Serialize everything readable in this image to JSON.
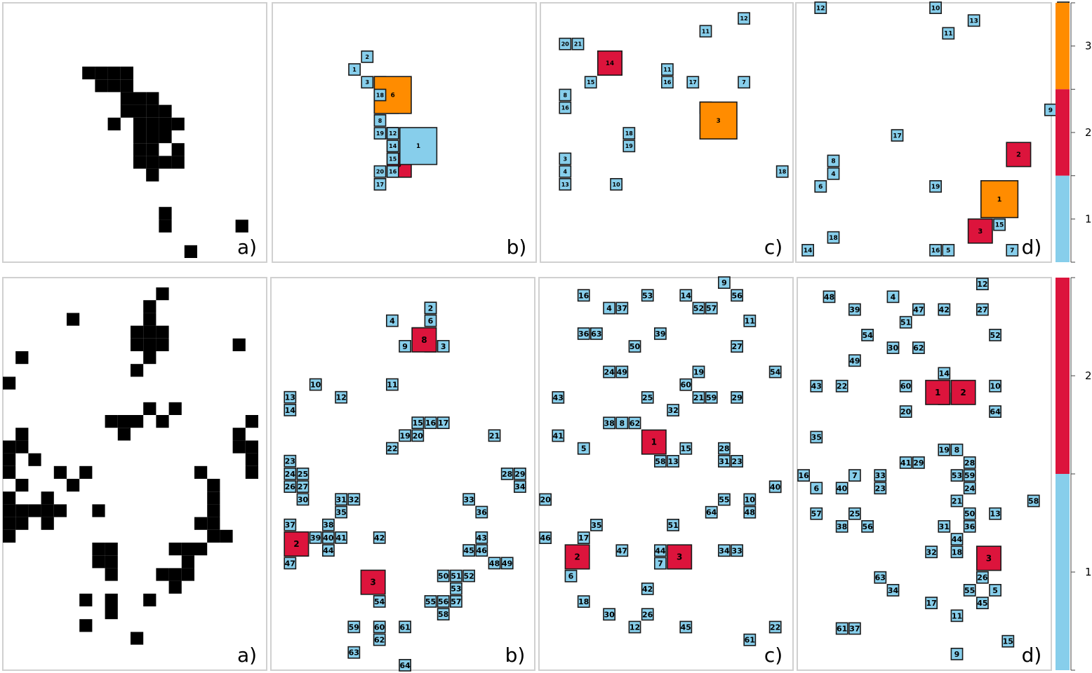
{
  "colors": {
    "level_1": "#87ceeb",
    "level_2": "#dc143c",
    "level_3": "#ff8c00",
    "pixel": "#000000",
    "panel_border": "#d0d0d0"
  },
  "rows": [
    {
      "label_a": "a)",
      "label_b": "b)",
      "label_c": "c)",
      "label_d": "d)",
      "grid_size": 20,
      "pixels": [
        [
          6,
          5
        ],
        [
          7,
          5
        ],
        [
          8,
          5
        ],
        [
          9,
          5
        ],
        [
          7,
          6
        ],
        [
          8,
          6
        ],
        [
          9,
          6
        ],
        [
          9,
          7
        ],
        [
          10,
          7
        ],
        [
          11,
          7
        ],
        [
          9,
          8
        ],
        [
          10,
          8
        ],
        [
          11,
          8
        ],
        [
          12,
          8
        ],
        [
          8,
          9
        ],
        [
          10,
          9
        ],
        [
          11,
          9
        ],
        [
          12,
          9
        ],
        [
          13,
          9
        ],
        [
          10,
          10
        ],
        [
          11,
          10
        ],
        [
          12,
          10
        ],
        [
          10,
          11
        ],
        [
          11,
          11
        ],
        [
          13,
          11
        ],
        [
          10,
          12
        ],
        [
          11,
          12
        ],
        [
          12,
          12
        ],
        [
          13,
          12
        ],
        [
          11,
          13
        ],
        [
          12,
          16
        ],
        [
          12,
          17
        ],
        [
          18,
          17
        ],
        [
          14,
          19
        ]
      ],
      "b_boxes": [
        [
          5,
          0,
          5,
          1
        ],
        [
          6,
          0,
          4,
          2
        ],
        [
          6,
          0,
          6,
          3
        ],
        [
          7,
          0,
          6,
          5
        ],
        [
          7,
          0,
          7,
          7
        ],
        [
          7,
          0,
          9,
          8
        ],
        [
          8,
          0,
          10,
          10
        ],
        [
          8,
          0,
          10,
          11
        ],
        [
          8,
          0,
          10,
          12
        ],
        [
          8,
          0,
          11,
          13
        ],
        [
          7,
          1,
          7,
          4
        ],
        [
          8,
          1,
          12,
          9
        ],
        [
          7,
          2,
          6,
          6
        ],
        [
          9,
          3,
          10,
          1
        ],
        [
          8,
          0,
          11,
          14
        ],
        [
          8,
          0,
          12,
          15
        ],
        [
          8,
          0,
          13,
          16
        ],
        [
          7,
          0,
          7,
          18
        ],
        [
          7,
          0,
          13,
          20
        ],
        [
          7,
          0,
          14,
          17
        ],
        [
          7,
          0,
          10,
          19
        ]
      ],
      "c_boxes": [
        [
          12,
          0,
          8,
          2
        ],
        [
          12,
          0,
          2,
          11
        ],
        [
          1,
          0,
          12,
          3
        ],
        [
          1,
          0,
          13,
          4
        ],
        [
          1,
          0,
          7,
          8
        ],
        [
          4,
          1,
          4,
          14
        ],
        [
          3,
          0,
          6,
          15
        ],
        [
          1,
          0,
          8,
          16
        ],
        [
          6,
          0,
          10,
          18
        ],
        [
          6,
          0,
          11,
          19
        ],
        [
          1,
          0,
          3,
          20
        ],
        [
          2,
          0,
          3,
          21
        ],
        [
          15,
          0,
          1,
          12
        ],
        [
          1,
          0,
          14,
          13
        ],
        [
          5,
          0,
          14,
          10
        ],
        [
          9,
          0,
          5,
          11
        ],
        [
          9,
          0,
          6,
          16
        ],
        [
          11,
          0,
          6,
          17
        ],
        [
          15,
          0,
          6,
          7
        ],
        [
          18,
          0,
          13,
          18
        ],
        [
          12,
          2,
          8,
          3
        ]
      ],
      "d_boxes": [
        [
          1,
          0,
          0,
          12
        ],
        [
          10,
          0,
          0,
          10
        ],
        [
          13,
          0,
          1,
          13
        ],
        [
          20,
          0,
          0,
          20
        ],
        [
          11,
          0,
          2,
          11
        ],
        [
          19,
          0,
          8,
          9
        ],
        [
          7,
          0,
          10,
          17
        ],
        [
          2,
          0,
          12,
          8
        ],
        [
          2,
          0,
          13,
          4
        ],
        [
          1,
          0,
          14,
          6
        ],
        [
          16,
          1,
          11,
          2
        ],
        [
          10,
          0,
          14,
          19
        ],
        [
          14,
          2,
          14,
          1
        ],
        [
          15,
          0,
          17,
          15
        ],
        [
          13,
          1,
          17,
          3
        ],
        [
          2,
          0,
          18,
          18
        ],
        [
          0,
          0,
          19,
          14
        ],
        [
          10,
          0,
          19,
          16
        ],
        [
          11,
          0,
          19,
          5
        ],
        [
          16,
          0,
          19,
          7
        ]
      ],
      "legend": {
        "ticks": [
          "1",
          "2",
          "3"
        ],
        "levels": 3
      }
    },
    {
      "label_a": "a)",
      "label_b": "b)",
      "label_c": "c)",
      "label_d": "d)",
      "grid_size": 30,
      "legend": {
        "ticks": [
          "1",
          "2"
        ],
        "levels": 2
      }
    }
  ],
  "row2_pixels": [
    [
      12,
      0
    ],
    [
      11,
      1
    ],
    [
      5,
      2
    ],
    [
      11,
      2
    ],
    [
      10,
      3
    ],
    [
      11,
      3
    ],
    [
      12,
      3
    ],
    [
      10,
      4
    ],
    [
      11,
      4
    ],
    [
      12,
      4
    ],
    [
      18,
      4
    ],
    [
      1,
      5
    ],
    [
      11,
      5
    ],
    [
      10,
      6
    ],
    [
      0,
      7
    ],
    [
      11,
      9
    ],
    [
      13,
      9
    ],
    [
      8,
      10
    ],
    [
      9,
      10
    ],
    [
      10,
      10
    ],
    [
      12,
      10
    ],
    [
      19,
      10
    ],
    [
      9,
      11
    ],
    [
      1,
      11
    ],
    [
      18,
      11
    ],
    [
      0,
      12
    ],
    [
      1,
      12
    ],
    [
      18,
      12
    ],
    [
      19,
      12
    ],
    [
      0,
      13
    ],
    [
      2,
      13
    ],
    [
      19,
      13
    ],
    [
      0,
      14
    ],
    [
      4,
      14
    ],
    [
      6,
      14
    ],
    [
      15,
      14
    ],
    [
      19,
      14
    ],
    [
      1,
      15
    ],
    [
      5,
      15
    ],
    [
      16,
      15
    ],
    [
      0,
      16
    ],
    [
      3,
      16
    ],
    [
      16,
      16
    ],
    [
      0,
      17
    ],
    [
      1,
      17
    ],
    [
      2,
      17
    ],
    [
      3,
      17
    ],
    [
      4,
      17
    ],
    [
      7,
      17
    ],
    [
      16,
      17
    ],
    [
      0,
      18
    ],
    [
      1,
      18
    ],
    [
      3,
      18
    ],
    [
      15,
      18
    ],
    [
      16,
      18
    ],
    [
      0,
      19
    ],
    [
      16,
      19
    ],
    [
      17,
      19
    ],
    [
      7,
      20
    ],
    [
      8,
      20
    ],
    [
      13,
      20
    ],
    [
      14,
      20
    ],
    [
      15,
      20
    ],
    [
      7,
      21
    ],
    [
      8,
      21
    ],
    [
      14,
      21
    ],
    [
      8,
      22
    ],
    [
      12,
      22
    ],
    [
      13,
      22
    ],
    [
      14,
      22
    ],
    [
      13,
      23
    ],
    [
      6,
      24
    ],
    [
      8,
      24
    ],
    [
      11,
      24
    ],
    [
      8,
      25
    ],
    [
      6,
      26
    ],
    [
      10,
      27
    ]
  ],
  "row2_b": [
    [
      12,
      0,
      1,
      1
    ],
    [
      12,
      0,
      1,
      2
    ],
    [
      13,
      0,
      4,
      3
    ],
    [
      9,
      0,
      2,
      4
    ],
    [
      11,
      0,
      3,
      5
    ],
    [
      12,
      0,
      2,
      6
    ],
    [
      12,
      0,
      4,
      7
    ],
    [
      11,
      1,
      3,
      8
    ],
    [
      10,
      0,
      4,
      9
    ],
    [
      3,
      0,
      7,
      10
    ],
    [
      9,
      0,
      7,
      11
    ],
    [
      5,
      0,
      8,
      12
    ],
    [
      1,
      0,
      8,
      13
    ],
    [
      1,
      0,
      9,
      14
    ],
    [
      11,
      0,
      10,
      15
    ],
    [
      12,
      0,
      10,
      16
    ],
    [
      13,
      0,
      10,
      17
    ],
    [
      10,
      0,
      11,
      19
    ],
    [
      11,
      0,
      11,
      20
    ],
    [
      17,
      0,
      11,
      21
    ],
    [
      9,
      0,
      12,
      22
    ],
    [
      1,
      0,
      13,
      23
    ],
    [
      1,
      0,
      14,
      24
    ],
    [
      2,
      0,
      14,
      25
    ],
    [
      1,
      0,
      15,
      26
    ],
    [
      2,
      0,
      15,
      27
    ],
    [
      18,
      0,
      14,
      28
    ],
    [
      19,
      0,
      14,
      29
    ],
    [
      2,
      0,
      16,
      30
    ],
    [
      5,
      0,
      16,
      31
    ],
    [
      6,
      0,
      16,
      32
    ],
    [
      15,
      0,
      16,
      33
    ],
    [
      19,
      0,
      15,
      34
    ],
    [
      5,
      0,
      17,
      35
    ],
    [
      16,
      0,
      17,
      36
    ],
    [
      1,
      0,
      18,
      37
    ],
    [
      4,
      0,
      18,
      38
    ],
    [
      3,
      0,
      19,
      39
    ],
    [
      4,
      0,
      19,
      40
    ],
    [
      5,
      0,
      19,
      41
    ],
    [
      8,
      0,
      19,
      42
    ],
    [
      16,
      0,
      19,
      43
    ],
    [
      4,
      0,
      20,
      44
    ],
    [
      15,
      0,
      20,
      45
    ],
    [
      16,
      0,
      20,
      46
    ],
    [
      1,
      0,
      21,
      47
    ],
    [
      17,
      0,
      21,
      48
    ],
    [
      18,
      0,
      21,
      49
    ],
    [
      13,
      0,
      22,
      50
    ],
    [
      14,
      0,
      22,
      51
    ],
    [
      15,
      0,
      22,
      52
    ],
    [
      14,
      0,
      23,
      53
    ],
    [
      8,
      0,
      24,
      54
    ],
    [
      12,
      0,
      24,
      55
    ],
    [
      13,
      0,
      24,
      56
    ],
    [
      14,
      0,
      24,
      57
    ],
    [
      13,
      0,
      25,
      58
    ],
    [
      6,
      0,
      26,
      59
    ],
    [
      8,
      0,
      26,
      60
    ],
    [
      10,
      0,
      26,
      61
    ],
    [
      8,
      0,
      27,
      62
    ],
    [
      6,
      0,
      28,
      63
    ],
    [
      10,
      0,
      29,
      64
    ],
    [
      1,
      1,
      19,
      2
    ],
    [
      7,
      1,
      22,
      3
    ]
  ],
  "row2_c": [
    [
      3,
      0,
      1,
      16
    ],
    [
      5,
      0,
      2,
      4
    ],
    [
      6,
      0,
      2,
      37
    ],
    [
      8,
      0,
      1,
      53
    ],
    [
      11,
      0,
      1,
      14
    ],
    [
      12,
      0,
      2,
      52
    ],
    [
      13,
      0,
      2,
      57
    ],
    [
      14,
      0,
      0,
      9
    ],
    [
      15,
      0,
      1,
      56
    ],
    [
      16,
      0,
      3,
      11
    ],
    [
      3,
      0,
      4,
      36
    ],
    [
      4,
      0,
      4,
      63
    ],
    [
      7,
      0,
      5,
      50
    ],
    [
      9,
      0,
      4,
      39
    ],
    [
      15,
      0,
      5,
      27
    ],
    [
      5,
      0,
      7,
      24
    ],
    [
      6,
      0,
      7,
      49
    ],
    [
      12,
      0,
      7,
      19
    ],
    [
      18,
      0,
      7,
      54
    ],
    [
      11,
      0,
      8,
      60
    ],
    [
      1,
      0,
      9,
      43
    ],
    [
      8,
      0,
      9,
      25
    ],
    [
      12,
      0,
      9,
      21
    ],
    [
      13,
      0,
      9,
      59
    ],
    [
      15,
      0,
      9,
      29
    ],
    [
      10,
      0,
      10,
      32
    ],
    [
      5,
      0,
      11,
      38
    ],
    [
      6,
      0,
      11,
      8
    ],
    [
      7,
      0,
      11,
      62
    ],
    [
      1,
      0,
      12,
      41
    ],
    [
      3,
      0,
      13,
      5
    ],
    [
      11,
      0,
      13,
      15
    ],
    [
      14,
      0,
      13,
      28
    ],
    [
      9,
      0,
      14,
      58
    ],
    [
      10,
      0,
      14,
      13
    ],
    [
      14,
      0,
      14,
      31
    ],
    [
      15,
      0,
      14,
      23
    ],
    [
      18,
      0,
      16,
      40
    ],
    [
      0,
      0,
      17,
      20
    ],
    [
      14,
      0,
      17,
      55
    ],
    [
      16,
      0,
      17,
      10
    ],
    [
      16,
      0,
      18,
      48
    ],
    [
      13,
      0,
      18,
      64
    ],
    [
      4,
      0,
      19,
      35
    ],
    [
      10,
      0,
      19,
      51
    ],
    [
      0,
      0,
      20,
      46
    ],
    [
      3,
      0,
      20,
      17
    ],
    [
      6,
      0,
      21,
      47
    ],
    [
      9,
      0,
      21,
      44
    ],
    [
      14,
      0,
      21,
      34
    ],
    [
      15,
      0,
      21,
      33
    ],
    [
      9,
      0,
      22,
      7
    ],
    [
      2,
      0,
      23,
      6
    ],
    [
      8,
      0,
      24,
      42
    ],
    [
      3,
      0,
      25,
      18
    ],
    [
      5,
      0,
      26,
      30
    ],
    [
      8,
      0,
      26,
      26
    ],
    [
      7,
      0,
      27,
      12
    ],
    [
      11,
      0,
      27,
      45
    ],
    [
      18,
      0,
      27,
      22
    ],
    [
      16,
      0,
      28,
      61
    ],
    [
      8,
      1,
      12,
      1
    ],
    [
      2,
      1,
      21,
      2
    ],
    [
      10,
      1,
      21,
      3
    ]
  ],
  "row2_d": [
    [
      2,
      0,
      1,
      48
    ],
    [
      4,
      0,
      2,
      39
    ],
    [
      7,
      0,
      1,
      4
    ],
    [
      9,
      0,
      2,
      47
    ],
    [
      11,
      0,
      2,
      42
    ],
    [
      14,
      0,
      0,
      12
    ],
    [
      14,
      0,
      2,
      27
    ],
    [
      8,
      0,
      3,
      51
    ],
    [
      5,
      0,
      4,
      54
    ],
    [
      7,
      0,
      5,
      30
    ],
    [
      9,
      0,
      5,
      62
    ],
    [
      15,
      0,
      4,
      52
    ],
    [
      4,
      0,
      6,
      49
    ],
    [
      11,
      0,
      7,
      14
    ],
    [
      1,
      0,
      8,
      43
    ],
    [
      3,
      0,
      8,
      22
    ],
    [
      8,
      0,
      8,
      60
    ],
    [
      15,
      0,
      8,
      10
    ],
    [
      11,
      0,
      9,
      46
    ],
    [
      8,
      0,
      10,
      20
    ],
    [
      15,
      0,
      10,
      64
    ],
    [
      1,
      0,
      12,
      35
    ],
    [
      11,
      0,
      13,
      19
    ],
    [
      12,
      0,
      13,
      8
    ],
    [
      8,
      0,
      14,
      41
    ],
    [
      9,
      0,
      14,
      29
    ],
    [
      13,
      0,
      14,
      28
    ],
    [
      0,
      0,
      15,
      16
    ],
    [
      4,
      0,
      15,
      7
    ],
    [
      6,
      0,
      15,
      33
    ],
    [
      12,
      0,
      15,
      53
    ],
    [
      13,
      0,
      15,
      59
    ],
    [
      1,
      0,
      16,
      6
    ],
    [
      3,
      0,
      16,
      40
    ],
    [
      6,
      0,
      16,
      23
    ],
    [
      13,
      0,
      16,
      24
    ],
    [
      18,
      0,
      17,
      58
    ],
    [
      12,
      0,
      17,
      21
    ],
    [
      1,
      0,
      18,
      57
    ],
    [
      4,
      0,
      18,
      25
    ],
    [
      13,
      0,
      18,
      50
    ],
    [
      15,
      0,
      18,
      13
    ],
    [
      3,
      0,
      19,
      38
    ],
    [
      5,
      0,
      19,
      56
    ],
    [
      11,
      0,
      19,
      31
    ],
    [
      13,
      0,
      19,
      36
    ],
    [
      12,
      0,
      20,
      44
    ],
    [
      10,
      0,
      21,
      32
    ],
    [
      12,
      0,
      21,
      18
    ],
    [
      6,
      0,
      23,
      63
    ],
    [
      7,
      0,
      24,
      34
    ],
    [
      13,
      0,
      24,
      55
    ],
    [
      15,
      0,
      24,
      5
    ],
    [
      14,
      0,
      23,
      26
    ],
    [
      10,
      0,
      25,
      17
    ],
    [
      14,
      0,
      25,
      45
    ],
    [
      12,
      0,
      26,
      11
    ],
    [
      3,
      0,
      27,
      61
    ],
    [
      4,
      0,
      27,
      37
    ],
    [
      12,
      0,
      29,
      9
    ],
    [
      16,
      0,
      28,
      15
    ],
    [
      10,
      1,
      8,
      1
    ],
    [
      12,
      1,
      8,
      2
    ],
    [
      14,
      1,
      21,
      3
    ]
  ]
}
